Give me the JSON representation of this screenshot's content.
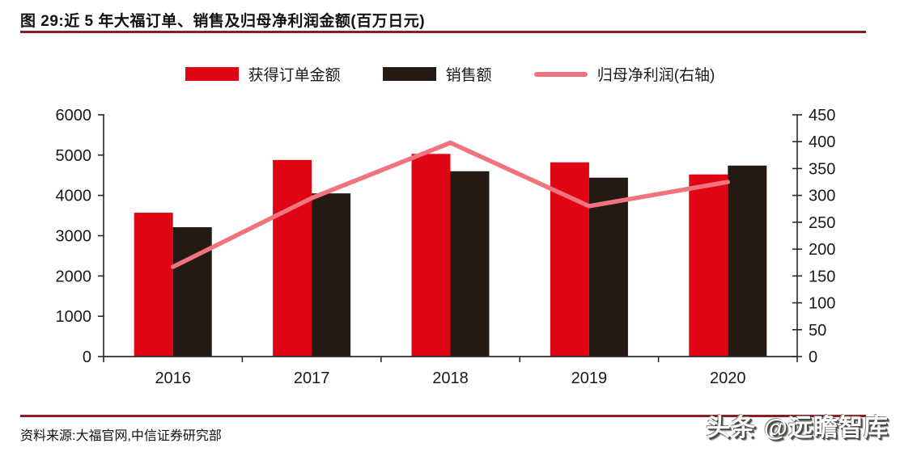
{
  "header": {
    "title": "图 29:近 5 年大福订单、销售及归母净利润金额(百万日元)"
  },
  "colors": {
    "rule_maroon": "#8E1B1E",
    "orders_red": "#DF0514",
    "sales_dark": "#251914",
    "profit_pink": "#F0737F",
    "axis_line": "#2B2B2B",
    "tick_text": "#1A1A1A"
  },
  "chart_data": {
    "type": "bar",
    "subtype": "grouped-bars-with-line-overlay",
    "title": "近 5 年大福订单、销售及归母净利润金额(百万日元)",
    "categories": [
      "2016",
      "2017",
      "2018",
      "2019",
      "2020"
    ],
    "series": [
      {
        "key": "orders",
        "name": "获得订单金额",
        "type": "bar",
        "axis": "left",
        "color": "#DF0514",
        "values": [
          3570,
          4880,
          5030,
          4820,
          4520
        ]
      },
      {
        "key": "sales",
        "name": "销售额",
        "type": "bar",
        "axis": "left",
        "color": "#251914",
        "values": [
          3210,
          4050,
          4600,
          4440,
          4740
        ]
      },
      {
        "key": "net_profit",
        "name": "归母净利润(右轴)",
        "type": "line",
        "axis": "right",
        "color": "#F0737F",
        "values": [
          167,
          295,
          398,
          280,
          325
        ]
      }
    ],
    "left_axis": {
      "min": 0,
      "max": 6000,
      "step": 1000
    },
    "right_axis": {
      "min": 0,
      "max": 450,
      "step": 50
    },
    "grid": false,
    "legend_position": "top"
  },
  "footer": {
    "source": "资料来源:大福官网,中信证券研究部",
    "watermark": "头条 @远瞻智库"
  }
}
